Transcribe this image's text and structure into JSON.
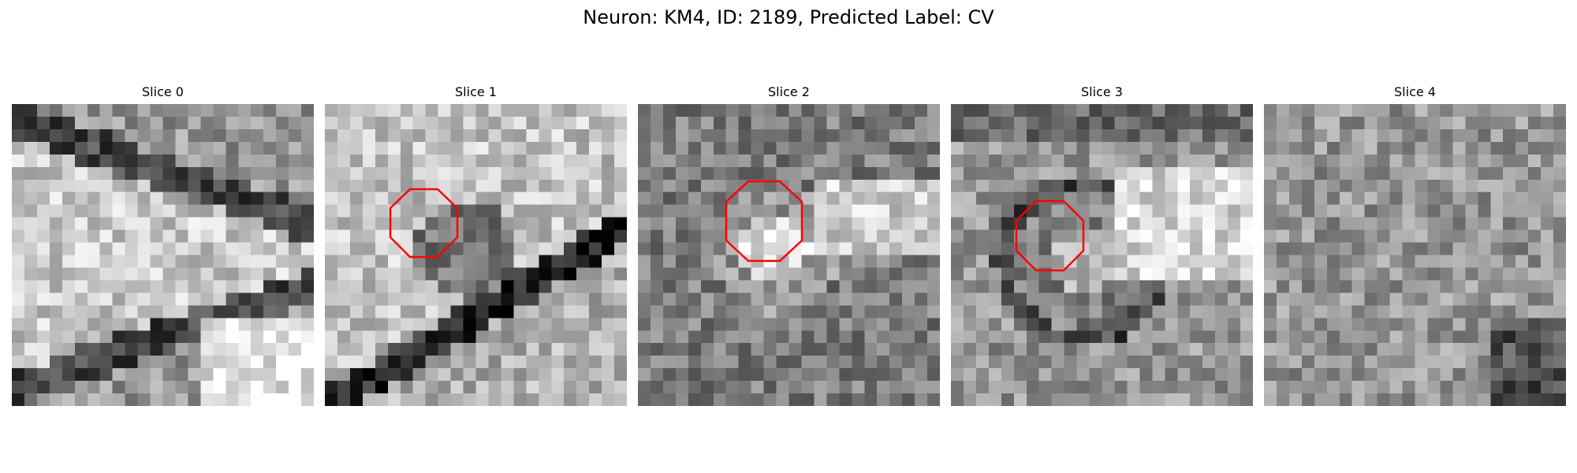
{
  "figure": {
    "title": "Neuron: KM4, ID: 2189, Predicted Label: CV"
  },
  "colors": {
    "roi_outline": "#ff0000",
    "colormap": "gray"
  },
  "image_grid": {
    "rows": 24,
    "cols": 24
  },
  "panels": [
    {
      "title": "Slice 0",
      "seed": 11,
      "has_roi": false,
      "theme": "band"
    },
    {
      "title": "Slice 1",
      "seed": 23,
      "has_roi": true,
      "theme": "diag"
    },
    {
      "title": "Slice 2",
      "seed": 37,
      "has_roi": true,
      "theme": "cell"
    },
    {
      "title": "Slice 3",
      "seed": 53,
      "has_roi": true,
      "theme": "cell2"
    },
    {
      "title": "Slice 4",
      "seed": 71,
      "has_roi": false,
      "theme": "noise"
    }
  ]
}
